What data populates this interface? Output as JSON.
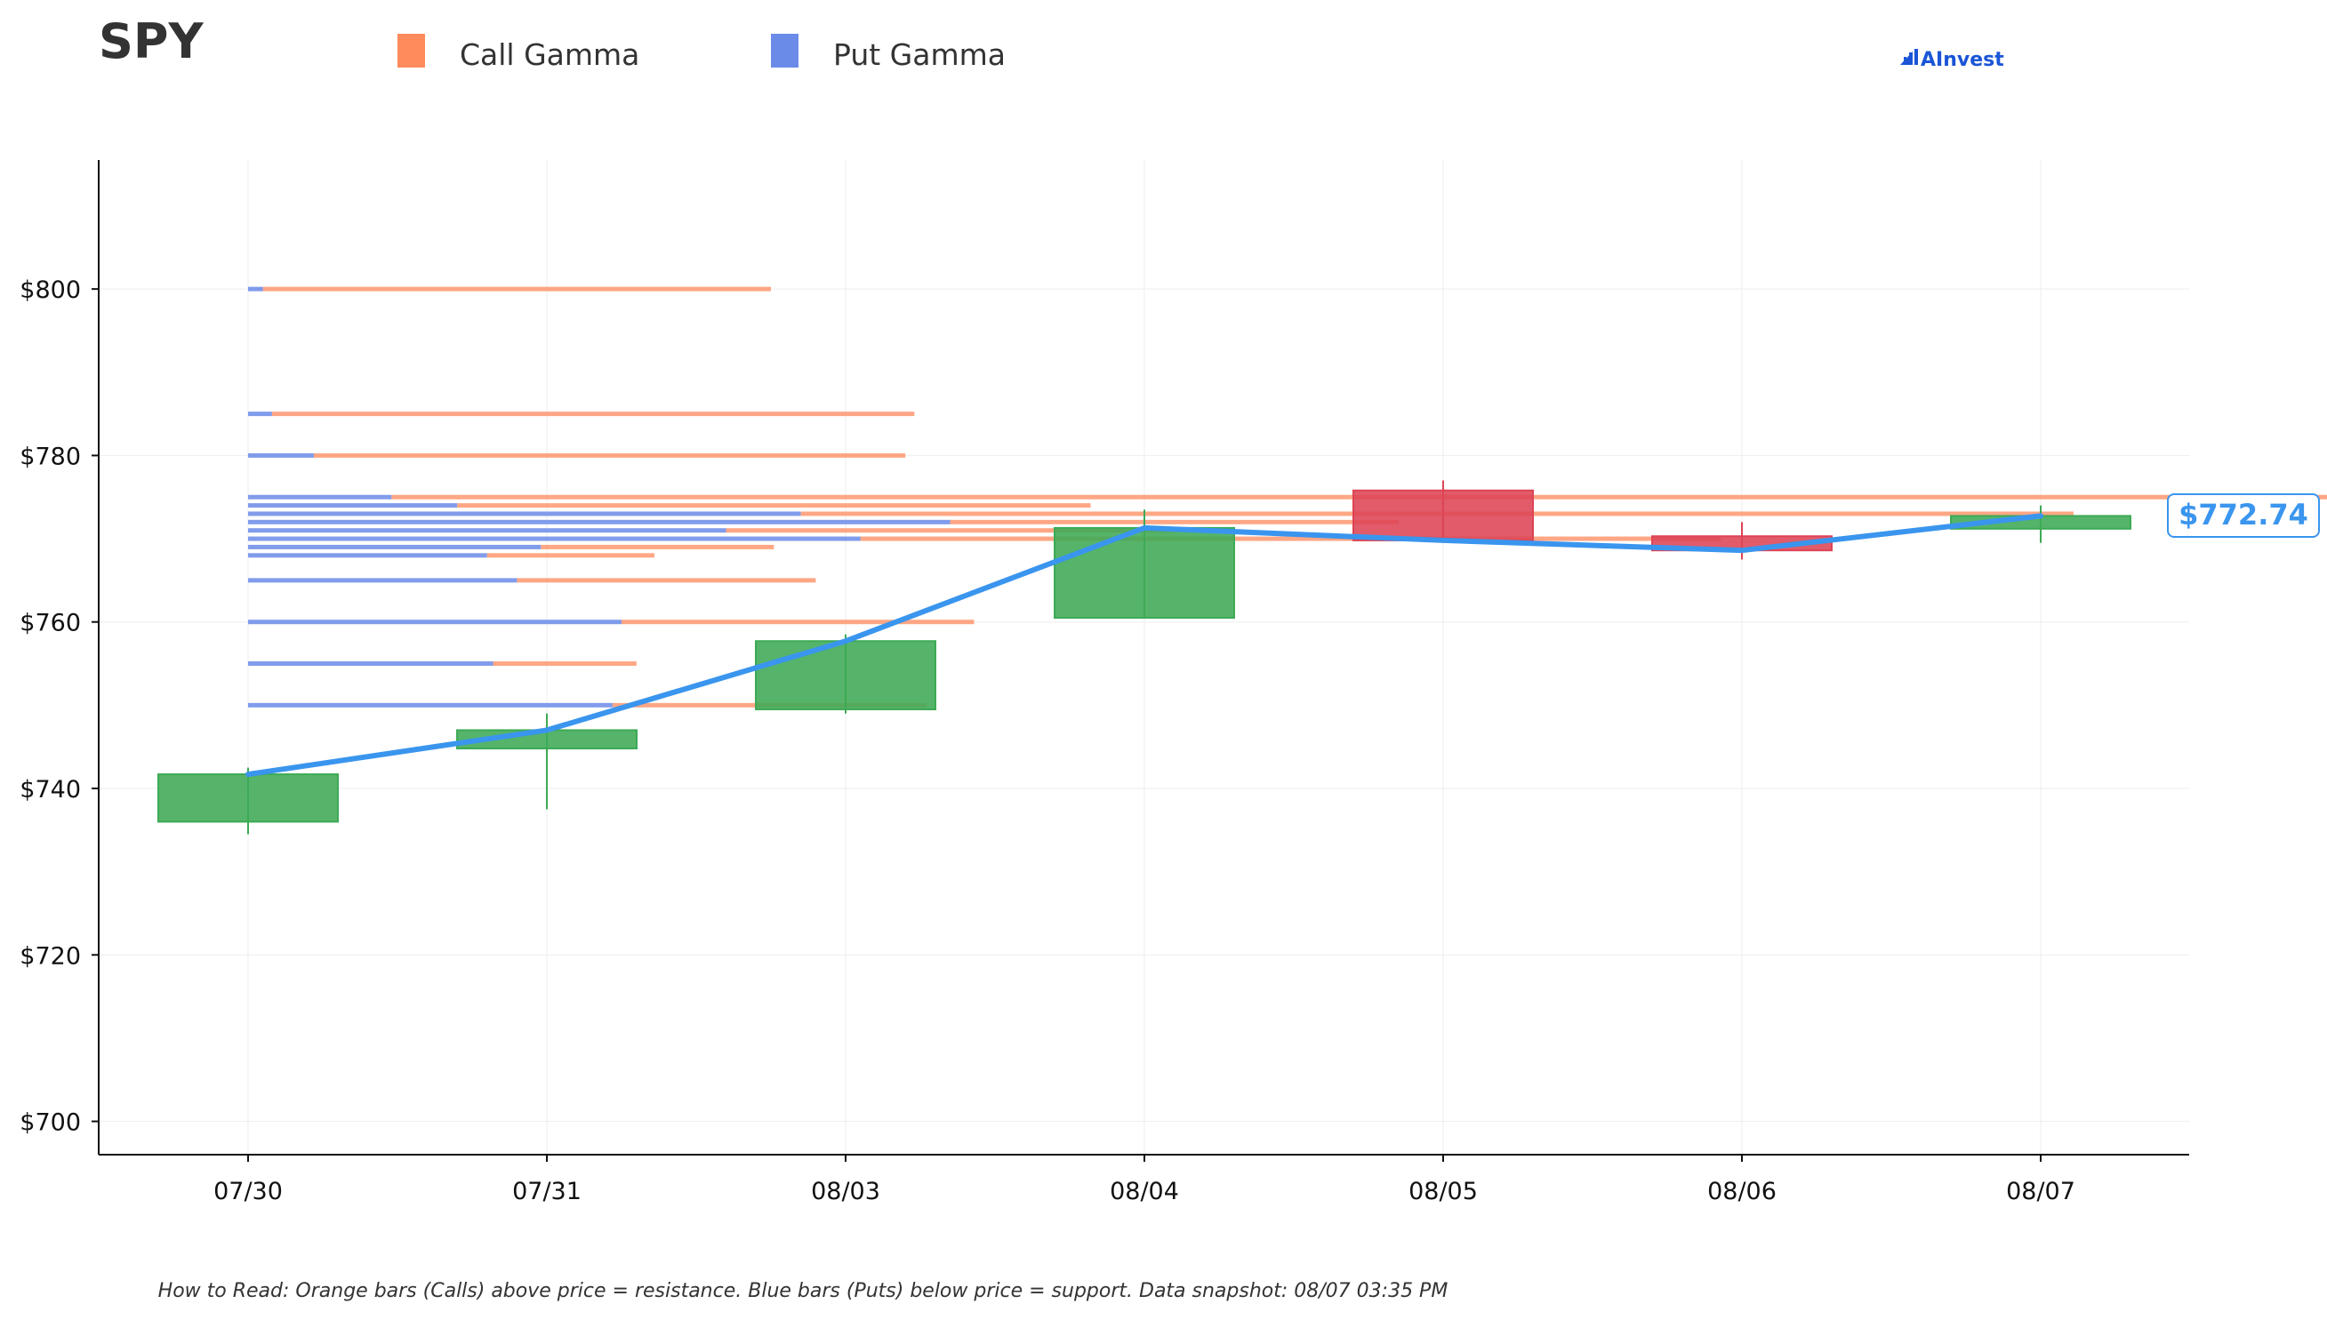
{
  "chart_data": {
    "type": "candlestick",
    "title": "SPY",
    "ticker": "SPY",
    "legend": [
      {
        "name": "Call Gamma",
        "color": "#FF8A5C"
      },
      {
        "name": "Put Gamma",
        "color": "#6B8BE8"
      }
    ],
    "legend_placement": "top",
    "brand": "AInvest",
    "brand_color": "#1A55D6",
    "categories": [
      "07/30",
      "07/31",
      "08/03",
      "08/04",
      "08/05",
      "08/06",
      "08/07"
    ],
    "ohlc": [
      {
        "date": "07/30",
        "open": 736.0,
        "high": 742.5,
        "low": 734.5,
        "close": 741.7
      },
      {
        "date": "07/31",
        "open": 744.8,
        "high": 749.0,
        "low": 737.5,
        "close": 747.0
      },
      {
        "date": "08/03",
        "open": 749.5,
        "high": 758.5,
        "low": 749.0,
        "close": 757.7
      },
      {
        "date": "08/04",
        "open": 760.5,
        "high": 773.5,
        "low": 760.5,
        "close": 771.3
      },
      {
        "date": "08/05",
        "open": 775.8,
        "high": 777.0,
        "low": 769.8,
        "close": 769.8
      },
      {
        "date": "08/06",
        "open": 770.3,
        "high": 772.0,
        "low": 767.5,
        "close": 768.6
      },
      {
        "date": "08/07",
        "open": 771.2,
        "high": 774.0,
        "low": 769.5,
        "close": 772.74
      }
    ],
    "price_line": [
      741.7,
      747.0,
      757.7,
      771.3,
      769.8,
      768.6,
      772.74
    ],
    "price_line_color": "#3A95EE",
    "current_price_label": "$772.74",
    "gamma_levels": [
      {
        "strike": 800,
        "put": 0.05,
        "call": 1.7
      },
      {
        "strike": 785,
        "put": 0.08,
        "call": 2.15
      },
      {
        "strike": 780,
        "put": 0.22,
        "call": 1.98
      },
      {
        "strike": 775,
        "put": 0.48,
        "call": 6.55
      },
      {
        "strike": 774,
        "put": 0.7,
        "call": 2.12
      },
      {
        "strike": 773,
        "put": 1.85,
        "call": 4.26
      },
      {
        "strike": 772,
        "put": 2.35,
        "call": 1.5
      },
      {
        "strike": 771,
        "put": 1.6,
        "call": 1.5
      },
      {
        "strike": 770,
        "put": 2.05,
        "call": 2.88
      },
      {
        "strike": 769,
        "put": 0.98,
        "call": 0.78
      },
      {
        "strike": 768,
        "put": 0.8,
        "call": 0.56
      },
      {
        "strike": 765,
        "put": 0.9,
        "call": 1.0
      },
      {
        "strike": 760,
        "put": 1.25,
        "call": 1.18
      },
      {
        "strike": 755,
        "put": 0.82,
        "call": 0.48
      },
      {
        "strike": 750,
        "put": 1.22,
        "call": 1.05
      }
    ],
    "gamma_scale_note": "bar lengths in units of one date spacing",
    "y_ticks": [
      700,
      720,
      740,
      760,
      780,
      800
    ],
    "y_tick_labels": [
      "$700",
      "$720",
      "$740",
      "$760",
      "$780",
      "$800"
    ],
    "ylim": [
      696,
      815.5
    ],
    "grid": true,
    "up_color": "#3DAA55",
    "down_color": "#DD4455",
    "footnote": "How to Read: Orange bars (Calls) above price = resistance. Blue bars (Puts) below price = support. Data snapshot: 08/07 03:35 PM"
  }
}
